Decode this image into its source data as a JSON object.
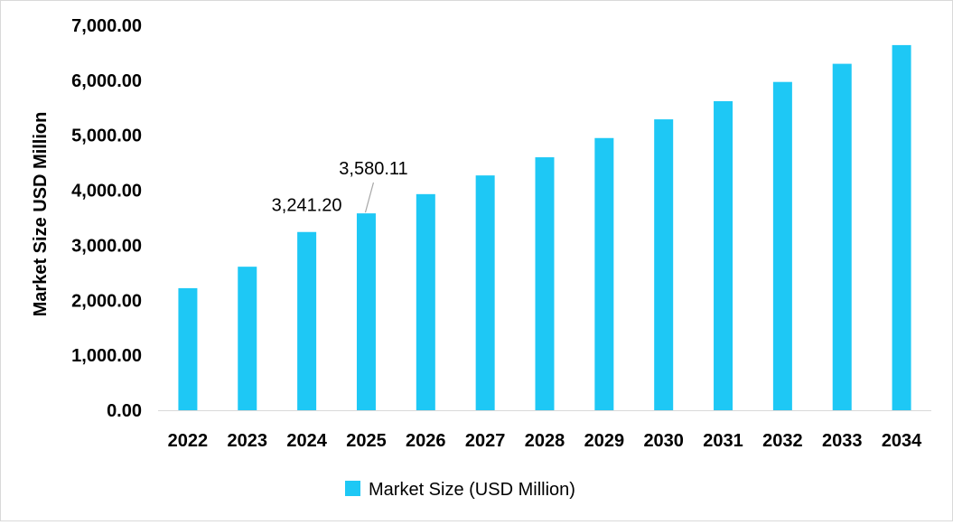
{
  "chart_data": {
    "type": "bar",
    "title": "",
    "xlabel": "",
    "ylabel": "Market Size USD Million",
    "ylim": [
      0,
      7000
    ],
    "yticks": [
      0,
      1000,
      2000,
      3000,
      4000,
      5000,
      6000,
      7000
    ],
    "ytick_labels": [
      "0.00",
      "1,000.00",
      "2,000.00",
      "3,000.00",
      "4,000.00",
      "5,000.00",
      "6,000.00",
      "7,000.00"
    ],
    "categories": [
      "2022",
      "2023",
      "2024",
      "2025",
      "2026",
      "2027",
      "2028",
      "2029",
      "2030",
      "2031",
      "2032",
      "2033",
      "2034"
    ],
    "series": [
      {
        "name": "Market Size (USD Million)",
        "color": "#1ec8f5",
        "values": [
          2220,
          2610,
          3241.2,
          3580.11,
          3930,
          4270,
          4600,
          4950,
          5290,
          5620,
          5970,
          6300,
          6640
        ]
      }
    ],
    "data_labels": [
      {
        "category": "2024",
        "text": "3,241.20"
      },
      {
        "category": "2025",
        "text": "3,580.11"
      }
    ],
    "grid": false,
    "legend": {
      "position": "bottom",
      "label": "Market Size (USD Million)"
    },
    "axis_color": "#d9d9d9",
    "leader_color": "#a6a6a6"
  }
}
